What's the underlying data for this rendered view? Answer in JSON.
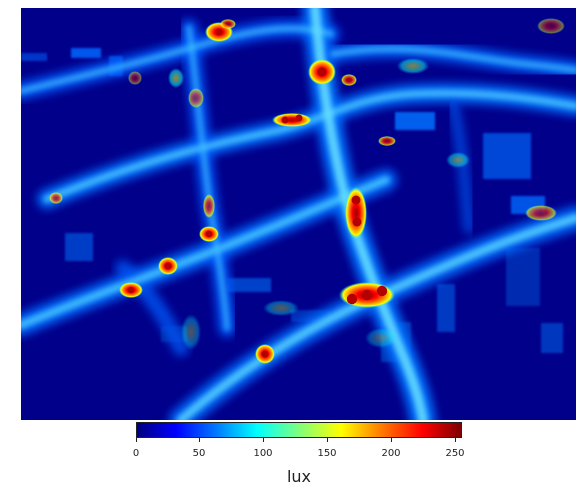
{
  "colorbar": {
    "label": "lux",
    "ticks": [
      "0",
      "50",
      "100",
      "150",
      "200",
      "250"
    ],
    "min": 0,
    "max": 255
  },
  "palette": {
    "background": "#00008b",
    "road_glow": "#0b6cff",
    "road_core": "#45c8ff",
    "hotspot_outer": "#ffef00",
    "hotspot_mid": "#ff5a00",
    "hotspot_core": "#bf0000"
  }
}
